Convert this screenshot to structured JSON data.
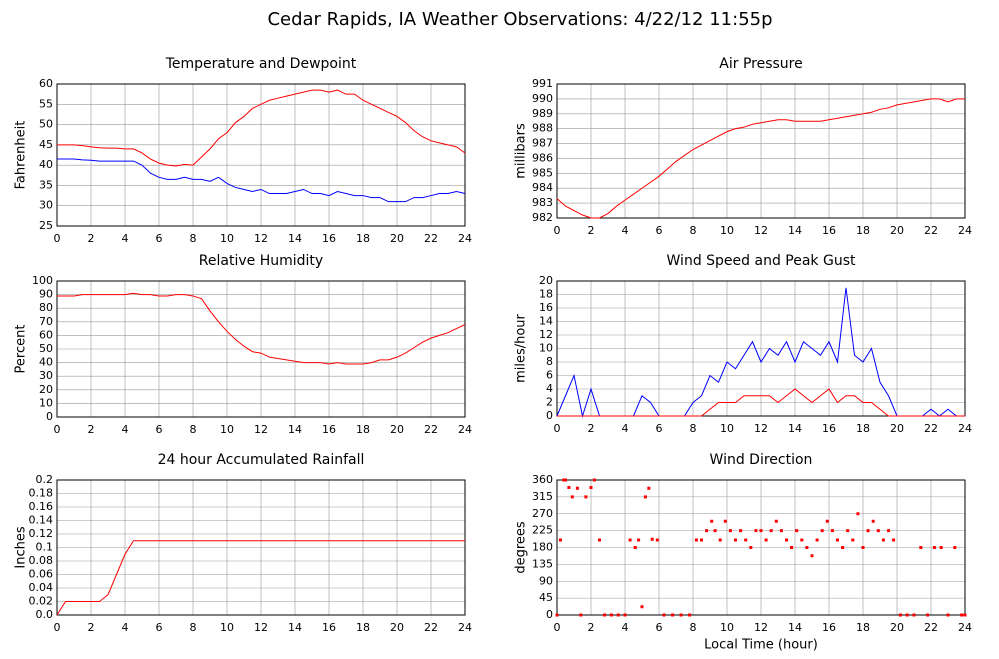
{
  "title": "Cedar Rapids, IA Weather Observations: 4/22/12 11:55p",
  "chart_data": [
    {
      "type": "line",
      "title": "Temperature and Dewpoint",
      "ylabel": "Fahrenheit",
      "x": [
        0,
        0.5,
        1,
        1.5,
        2,
        2.5,
        3,
        3.5,
        4,
        4.5,
        5,
        5.5,
        6,
        6.5,
        7,
        7.5,
        8,
        8.5,
        9,
        9.5,
        10,
        10.5,
        11,
        11.5,
        12,
        12.5,
        13,
        13.5,
        14,
        14.5,
        15,
        15.5,
        16,
        16.5,
        17,
        17.5,
        18,
        18.5,
        19,
        19.5,
        20,
        20.5,
        21,
        21.5,
        22,
        22.5,
        23,
        23.5,
        24
      ],
      "series": [
        {
          "color": "#ff0000",
          "values": [
            45,
            45,
            45,
            44.8,
            44.5,
            44.3,
            44.2,
            44.2,
            44,
            44,
            43,
            41.5,
            40.5,
            40,
            39.8,
            40.2,
            40,
            42,
            44,
            46.5,
            48,
            50.5,
            52,
            54,
            55,
            56,
            56.5,
            57,
            57.5,
            58,
            58.5,
            58.5,
            58,
            58.5,
            57.5,
            57.5,
            56,
            55,
            54,
            53,
            52,
            50.5,
            48.5,
            47,
            46,
            45.5,
            45,
            44.5,
            43
          ]
        },
        {
          "color": "#0000ff",
          "values": [
            41.5,
            41.5,
            41.5,
            41.3,
            41.2,
            41,
            41,
            41,
            41,
            41,
            40,
            38,
            37,
            36.5,
            36.5,
            37,
            36.5,
            36.5,
            36,
            37,
            35.5,
            34.5,
            34,
            33.5,
            34,
            33,
            33,
            33,
            33.5,
            34,
            33,
            33,
            32.5,
            33.5,
            33,
            32.5,
            32.5,
            32,
            32,
            31,
            31,
            31,
            32,
            32,
            32.5,
            33,
            33,
            33.5,
            33
          ]
        }
      ],
      "xlim": [
        0,
        24
      ],
      "xticks": [
        0,
        2,
        4,
        6,
        8,
        10,
        12,
        14,
        16,
        18,
        20,
        22,
        24
      ],
      "ylim": [
        25,
        60
      ],
      "yticks": [
        25,
        30,
        35,
        40,
        45,
        50,
        55,
        60
      ],
      "grid": true
    },
    {
      "type": "line",
      "title": "Air Pressure",
      "ylabel": "millibars",
      "x": [
        0,
        0.5,
        1,
        1.5,
        2,
        2.5,
        3,
        3.5,
        4,
        4.5,
        5,
        5.5,
        6,
        6.5,
        7,
        7.5,
        8,
        8.5,
        9,
        9.5,
        10,
        10.5,
        11,
        11.5,
        12,
        12.5,
        13,
        13.5,
        14,
        14.5,
        15,
        15.5,
        16,
        16.5,
        17,
        17.5,
        18,
        18.5,
        19,
        19.5,
        20,
        20.5,
        21,
        21.5,
        22,
        22.5,
        23,
        23.5,
        24
      ],
      "series": [
        {
          "color": "#ff0000",
          "values": [
            983.3,
            982.8,
            982.5,
            982.2,
            982,
            982,
            982.3,
            982.8,
            983.2,
            983.6,
            984,
            984.4,
            984.8,
            985.3,
            985.8,
            986.2,
            986.6,
            986.9,
            987.2,
            987.5,
            987.8,
            988,
            988.1,
            988.3,
            988.4,
            988.5,
            988.6,
            988.6,
            988.5,
            988.5,
            988.5,
            988.5,
            988.6,
            988.7,
            988.8,
            988.9,
            989,
            989.1,
            989.3,
            989.4,
            989.6,
            989.7,
            989.8,
            989.9,
            990,
            990,
            989.8,
            990,
            990
          ]
        }
      ],
      "xlim": [
        0,
        24
      ],
      "xticks": [
        0,
        2,
        4,
        6,
        8,
        10,
        12,
        14,
        16,
        18,
        20,
        22,
        24
      ],
      "ylim": [
        982,
        991
      ],
      "yticks": [
        982,
        983,
        984,
        985,
        986,
        987,
        988,
        989,
        990,
        991
      ],
      "grid": true
    },
    {
      "type": "line",
      "title": "Relative Humidity",
      "ylabel": "Percent",
      "x": [
        0,
        0.5,
        1,
        1.5,
        2,
        2.5,
        3,
        3.5,
        4,
        4.5,
        5,
        5.5,
        6,
        6.5,
        7,
        7.5,
        8,
        8.5,
        9,
        9.5,
        10,
        10.5,
        11,
        11.5,
        12,
        12.5,
        13,
        13.5,
        14,
        14.5,
        15,
        15.5,
        16,
        16.5,
        17,
        17.5,
        18,
        18.5,
        19,
        19.5,
        20,
        20.5,
        21,
        21.5,
        22,
        22.5,
        23,
        23.5,
        24
      ],
      "series": [
        {
          "color": "#ff0000",
          "values": [
            89,
            89,
            89,
            90,
            90,
            90,
            90,
            90,
            90,
            91,
            90,
            90,
            89,
            89,
            90,
            90,
            89,
            87,
            78,
            70,
            63,
            57,
            52,
            48,
            47,
            44,
            43,
            42,
            41,
            40,
            40,
            40,
            39,
            40,
            39,
            39,
            39,
            40,
            42,
            42,
            44,
            47,
            51,
            55,
            58,
            60,
            62,
            65,
            68
          ]
        }
      ],
      "xlim": [
        0,
        24
      ],
      "xticks": [
        0,
        2,
        4,
        6,
        8,
        10,
        12,
        14,
        16,
        18,
        20,
        22,
        24
      ],
      "ylim": [
        0,
        100
      ],
      "yticks": [
        0,
        10,
        20,
        30,
        40,
        50,
        60,
        70,
        80,
        90,
        100
      ],
      "grid": true
    },
    {
      "type": "line",
      "title": "Wind Speed and Peak Gust",
      "ylabel": "miles/hour",
      "x": [
        0,
        0.5,
        1,
        1.5,
        2,
        2.5,
        3,
        3.5,
        4,
        4.5,
        5,
        5.5,
        6,
        6.5,
        7,
        7.5,
        8,
        8.5,
        9,
        9.5,
        10,
        10.5,
        11,
        11.5,
        12,
        12.5,
        13,
        13.5,
        14,
        14.5,
        15,
        15.5,
        16,
        16.5,
        17,
        17.5,
        18,
        18.5,
        19,
        19.5,
        20,
        20.5,
        21,
        21.5,
        22,
        22.5,
        23,
        23.5,
        24
      ],
      "series": [
        {
          "color": "#0000ff",
          "values": [
            0,
            3,
            6,
            0,
            4,
            0,
            0,
            0,
            0,
            0,
            3,
            2,
            0,
            0,
            0,
            0,
            2,
            3,
            6,
            5,
            8,
            7,
            9,
            11,
            8,
            10,
            9,
            11,
            8,
            11,
            10,
            9,
            11,
            8,
            19,
            9,
            8,
            10,
            5,
            3,
            0,
            0,
            0,
            0,
            1,
            0,
            1,
            0,
            0
          ]
        },
        {
          "color": "#ff0000",
          "values": [
            0,
            0,
            0,
            0,
            0,
            0,
            0,
            0,
            0,
            0,
            0,
            0,
            0,
            0,
            0,
            0,
            0,
            0,
            1,
            2,
            2,
            2,
            3,
            3,
            3,
            3,
            2,
            3,
            4,
            3,
            2,
            3,
            4,
            2,
            3,
            3,
            2,
            2,
            1,
            0,
            0,
            0,
            0,
            0,
            0,
            0,
            0,
            0,
            0
          ]
        }
      ],
      "xlim": [
        0,
        24
      ],
      "xticks": [
        0,
        2,
        4,
        6,
        8,
        10,
        12,
        14,
        16,
        18,
        20,
        22,
        24
      ],
      "ylim": [
        0,
        20
      ],
      "yticks": [
        0,
        2,
        4,
        6,
        8,
        10,
        12,
        14,
        16,
        18,
        20
      ],
      "grid": true
    },
    {
      "type": "line",
      "title": "24 hour Accumulated Rainfall",
      "ylabel": "Inches",
      "x": [
        0,
        0.5,
        1,
        1.5,
        2,
        2.5,
        3,
        3.5,
        4,
        4.5,
        5,
        5.5,
        6,
        6.5,
        7,
        7.5,
        8,
        8.5,
        9,
        9.5,
        10,
        10.5,
        11,
        11.5,
        12,
        12.5,
        13,
        13.5,
        14,
        14.5,
        15,
        15.5,
        16,
        16.5,
        17,
        17.5,
        18,
        18.5,
        19,
        19.5,
        20,
        20.5,
        21,
        21.5,
        22,
        22.5,
        23,
        23.5,
        24
      ],
      "series": [
        {
          "color": "#ff0000",
          "values": [
            0,
            0.02,
            0.02,
            0.02,
            0.02,
            0.02,
            0.03,
            0.06,
            0.09,
            0.11,
            0.11,
            0.11,
            0.11,
            0.11,
            0.11,
            0.11,
            0.11,
            0.11,
            0.11,
            0.11,
            0.11,
            0.11,
            0.11,
            0.11,
            0.11,
            0.11,
            0.11,
            0.11,
            0.11,
            0.11,
            0.11,
            0.11,
            0.11,
            0.11,
            0.11,
            0.11,
            0.11,
            0.11,
            0.11,
            0.11,
            0.11,
            0.11,
            0.11,
            0.11,
            0.11,
            0.11,
            0.11,
            0.11,
            0.11
          ]
        }
      ],
      "xlim": [
        0,
        24
      ],
      "xticks": [
        0,
        2,
        4,
        6,
        8,
        10,
        12,
        14,
        16,
        18,
        20,
        22,
        24
      ],
      "ylim": [
        0,
        0.2
      ],
      "yticks": [
        {
          "value": 0,
          "label": "0.0"
        },
        0.02,
        0.04,
        0.06,
        0.08,
        0.1,
        0.12,
        0.14,
        0.16,
        0.18,
        0.2
      ],
      "grid": true
    },
    {
      "type": "scatter",
      "title": "Wind Direction",
      "ylabel": "degrees",
      "xlabel": "Local Time (hour)",
      "x": [
        0,
        0.2,
        0.4,
        0.5,
        0.7,
        0.9,
        1.2,
        1.4,
        1.7,
        2.0,
        2.2,
        2.5,
        2.8,
        3.2,
        3.6,
        4.0,
        4.3,
        4.6,
        4.8,
        5.0,
        5.2,
        5.4,
        5.6,
        5.9,
        6.3,
        6.8,
        7.3,
        7.8,
        8.2,
        8.5,
        8.8,
        9.1,
        9.3,
        9.6,
        9.9,
        10.2,
        10.5,
        10.8,
        11.1,
        11.4,
        11.7,
        12.0,
        12.3,
        12.6,
        12.9,
        13.2,
        13.5,
        13.8,
        14.1,
        14.4,
        14.7,
        15.0,
        15.3,
        15.6,
        15.9,
        16.2,
        16.5,
        16.8,
        17.1,
        17.4,
        17.7,
        18.0,
        18.3,
        18.6,
        18.9,
        19.2,
        19.5,
        19.8,
        20.2,
        20.6,
        21.0,
        21.4,
        21.8,
        22.2,
        22.6,
        23.0,
        23.4,
        23.8,
        24.0
      ],
      "values": [
        0,
        200,
        360,
        360,
        340,
        315,
        338,
        0,
        315,
        340,
        360,
        200,
        0,
        0,
        0,
        0,
        200,
        180,
        200,
        22,
        315,
        338,
        202,
        200,
        0,
        0,
        0,
        0,
        200,
        200,
        225,
        250,
        225,
        200,
        250,
        225,
        200,
        225,
        200,
        180,
        225,
        225,
        200,
        225,
        250,
        225,
        200,
        180,
        225,
        200,
        180,
        158,
        200,
        225,
        250,
        225,
        200,
        180,
        225,
        200,
        270,
        180,
        225,
        250,
        225,
        200,
        225,
        200,
        0,
        0,
        0,
        180,
        0,
        180,
        180,
        0,
        180,
        0,
        0
      ],
      "color": "#ff0000",
      "xlim": [
        0,
        24
      ],
      "xticks": [
        0,
        2,
        4,
        6,
        8,
        10,
        12,
        14,
        16,
        18,
        20,
        22,
        24
      ],
      "ylim": [
        0,
        360
      ],
      "yticks": [
        0,
        45,
        90,
        135,
        180,
        225,
        270,
        315,
        360
      ],
      "grid": true
    }
  ]
}
